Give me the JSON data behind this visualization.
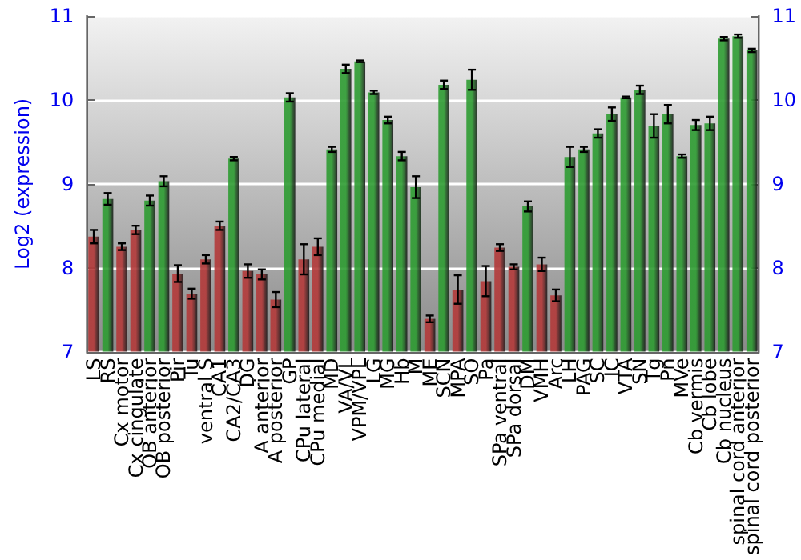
{
  "chart_data": {
    "type": "bar",
    "ylabel": "Log2 (expression)",
    "categories": [
      "LS",
      "RS",
      "Cx motor",
      "Cx cingulate",
      "OB anterior",
      "OB posterior",
      "Pir",
      "Tu",
      "ventral S",
      "CA1",
      "CA2/CA3",
      "DG",
      "A anterior",
      "A posterior",
      "GP",
      "CPu lateral",
      "CPu medial",
      "MD",
      "VA/VL",
      "VPM/VPL",
      "LG",
      "MG",
      "Hb",
      "M",
      "ME",
      "SCN",
      "MPA",
      "SO",
      "Pa",
      "SPa ventral",
      "SPa dorsal",
      "DM",
      "VMH",
      "Arc",
      "LH",
      "PAG",
      "SC",
      "IC",
      "VTA",
      "SN",
      "Tg",
      "Pn",
      "MVe",
      "Cb vermis",
      "Cb lobe",
      "Cb nucleus",
      "spinal cord anterior",
      "spinal cord posterior"
    ],
    "values": [
      8.37,
      8.82,
      8.25,
      8.45,
      8.8,
      9.03,
      7.93,
      7.69,
      8.1,
      8.5,
      9.3,
      7.96,
      7.92,
      7.62,
      10.03,
      8.1,
      8.25,
      9.41,
      10.37,
      10.46,
      10.09,
      9.76,
      9.33,
      8.96,
      7.39,
      10.18,
      7.74,
      10.24,
      7.84,
      8.24,
      8.01,
      8.73,
      8.04,
      7.67,
      9.32,
      9.41,
      9.6,
      9.83,
      10.03,
      10.12,
      9.69,
      9.83,
      9.33,
      9.7,
      9.72,
      10.73,
      10.76,
      10.59
    ],
    "errors": [
      0.08,
      0.07,
      0.04,
      0.05,
      0.06,
      0.06,
      0.1,
      0.06,
      0.05,
      0.05,
      0.02,
      0.08,
      0.06,
      0.09,
      0.05,
      0.18,
      0.1,
      0.03,
      0.05,
      0.01,
      0.02,
      0.04,
      0.05,
      0.13,
      0.04,
      0.05,
      0.17,
      0.12,
      0.18,
      0.04,
      0.03,
      0.06,
      0.08,
      0.07,
      0.12,
      0.03,
      0.05,
      0.08,
      0.01,
      0.05,
      0.14,
      0.11,
      0.02,
      0.06,
      0.08,
      0.02,
      0.02,
      0.02
    ],
    "colors": [
      "#b33a3a",
      "#2e9c32",
      "#b33a3a",
      "#b33a3a",
      "#2e9c32",
      "#2e9c32",
      "#b33a3a",
      "#b33a3a",
      "#b33a3a",
      "#b33a3a",
      "#2e9c32",
      "#b33a3a",
      "#b33a3a",
      "#b33a3a",
      "#2e9c32",
      "#b33a3a",
      "#b33a3a",
      "#2e9c32",
      "#2e9c32",
      "#2e9c32",
      "#2e9c32",
      "#2e9c32",
      "#2e9c32",
      "#2e9c32",
      "#b33a3a",
      "#2e9c32",
      "#b33a3a",
      "#2e9c32",
      "#b33a3a",
      "#b33a3a",
      "#b33a3a",
      "#2e9c32",
      "#b33a3a",
      "#b33a3a",
      "#2e9c32",
      "#2e9c32",
      "#2e9c32",
      "#2e9c32",
      "#2e9c32",
      "#2e9c32",
      "#2e9c32",
      "#2e9c32",
      "#2e9c32",
      "#2e9c32",
      "#2e9c32",
      "#2e9c32",
      "#2e9c32",
      "#2e9c32"
    ],
    "ylim": [
      7,
      11
    ],
    "yticks": [
      7,
      8,
      9,
      10,
      11
    ],
    "y2lim": [
      7,
      11
    ],
    "y2ticks": [
      7,
      8,
      9,
      10,
      11
    ],
    "grid": "y"
  }
}
